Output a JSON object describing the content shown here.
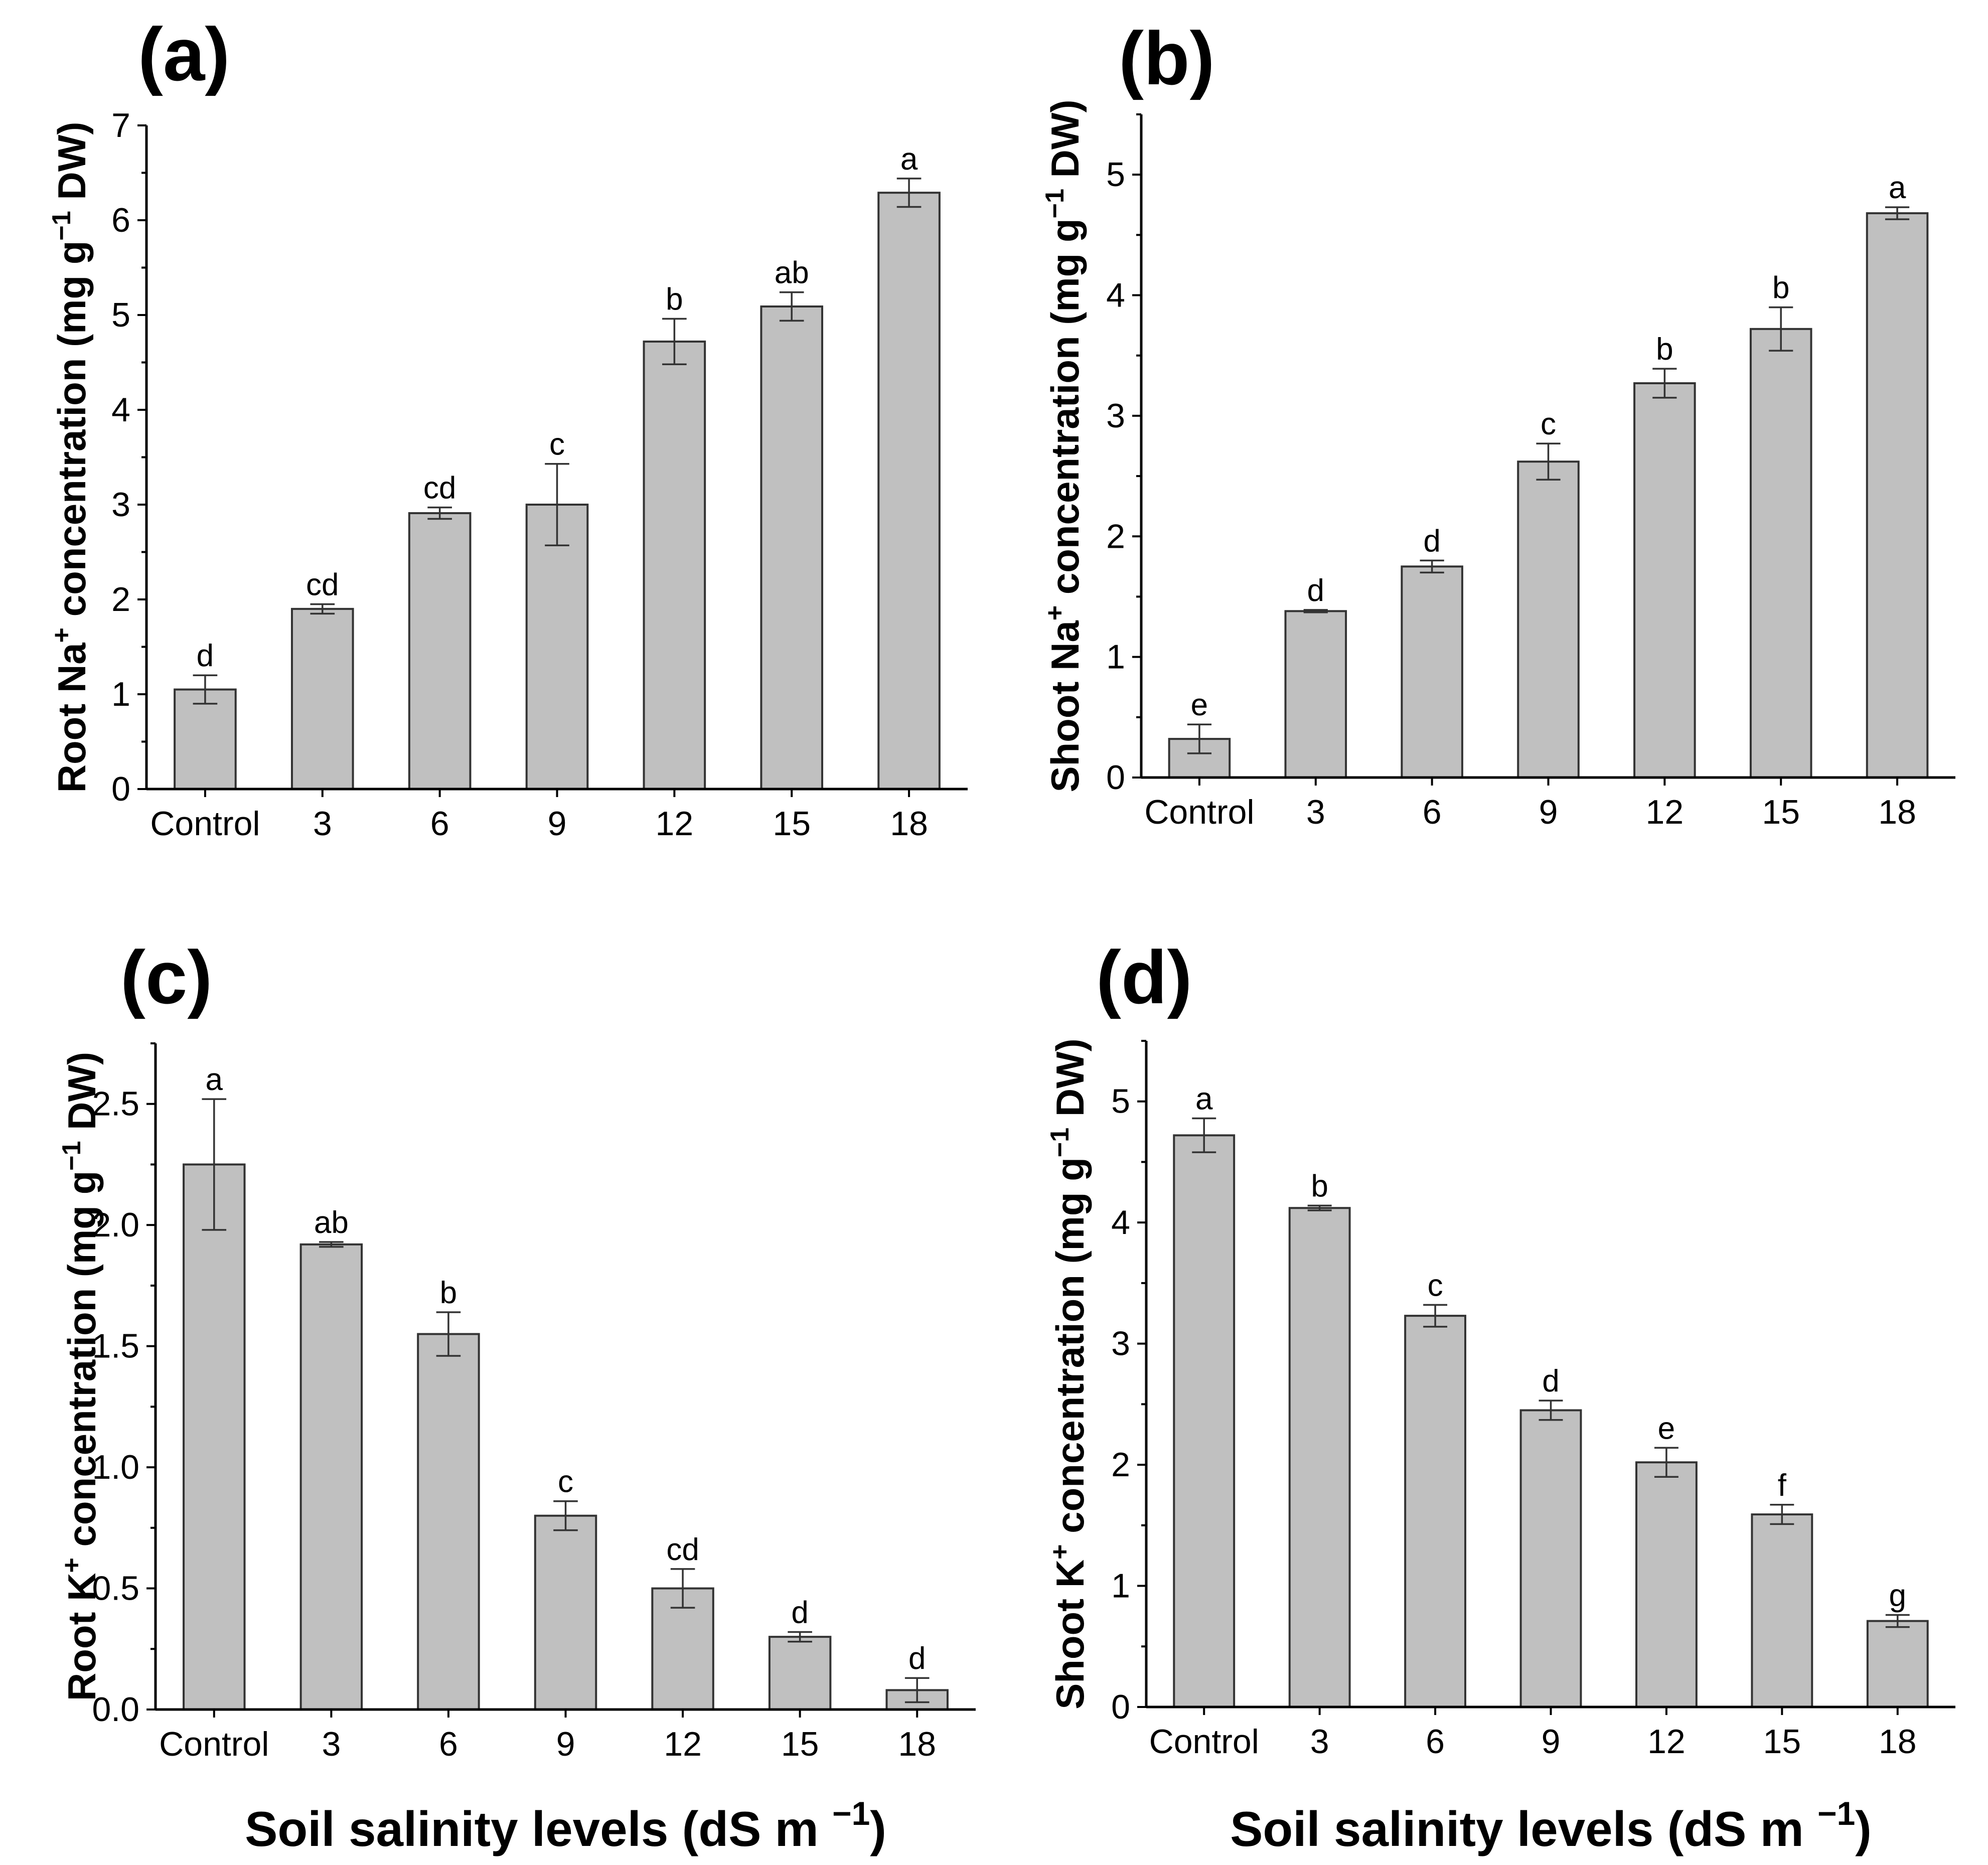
{
  "chart_data": [
    {
      "panel": "(a)",
      "type": "bar",
      "categories": [
        "Control",
        "3",
        "6",
        "9",
        "12",
        "15",
        "18"
      ],
      "values": [
        1.05,
        1.9,
        2.91,
        3.0,
        4.72,
        5.09,
        6.29
      ],
      "errors": [
        0.15,
        0.05,
        0.06,
        0.43,
        0.24,
        0.15,
        0.15
      ],
      "significance": [
        "d",
        "cd",
        "cd",
        "c",
        "b",
        "ab",
        "a"
      ],
      "ylabel": {
        "pre": "Root Na",
        "sup1": "+",
        "mid": " concentration (mg g",
        "sup2": "−1",
        "post": " DW)"
      },
      "xlabel": "",
      "ylim": [
        0,
        7
      ],
      "yticks": [
        "0",
        "1",
        "2",
        "3",
        "4",
        "5",
        "6",
        "7"
      ],
      "ytick_values": [
        0,
        1,
        2,
        3,
        4,
        5,
        6,
        7
      ],
      "bar_color": "#c0c0c0"
    },
    {
      "panel": "(b)",
      "type": "bar",
      "categories": [
        "Control",
        "3",
        "6",
        "9",
        "12",
        "15",
        "18"
      ],
      "values": [
        0.32,
        1.38,
        1.75,
        2.62,
        3.27,
        3.72,
        4.68
      ],
      "errors": [
        0.12,
        0.01,
        0.05,
        0.15,
        0.12,
        0.18,
        0.05
      ],
      "significance": [
        "e",
        "d",
        "d",
        "c",
        "b",
        "b",
        "a"
      ],
      "ylabel": {
        "pre": "Shoot Na",
        "sup1": "+",
        "mid": " concentration (mg g",
        "sup2": "−1",
        "post": " DW)"
      },
      "xlabel": "",
      "ylim": [
        0,
        5.5
      ],
      "yticks": [
        "0",
        "1",
        "2",
        "3",
        "4",
        "5"
      ],
      "ytick_values": [
        0,
        1,
        2,
        3,
        4,
        5
      ],
      "bar_color": "#c0c0c0"
    },
    {
      "panel": "(c)",
      "type": "bar",
      "categories": [
        "Control",
        "3",
        "6",
        "9",
        "12",
        "15",
        "18"
      ],
      "values": [
        2.25,
        1.92,
        1.55,
        0.8,
        0.5,
        0.3,
        0.08
      ],
      "errors": [
        0.27,
        0.01,
        0.09,
        0.06,
        0.08,
        0.02,
        0.05
      ],
      "significance": [
        "a",
        "ab",
        "b",
        "c",
        "cd",
        "d",
        "d"
      ],
      "ylabel": {
        "pre": "Root K",
        "sup1": "+",
        "mid": " concentration (mg g",
        "sup2": "−1",
        "post": " DW)"
      },
      "xlabel": {
        "main": "Soil salinity levels (dS m ",
        "sup": "−1",
        "post": ")"
      },
      "ylim": [
        0,
        2.75
      ],
      "yticks": [
        "0.0",
        "0.5",
        "1.0",
        "1.5",
        "2.0",
        "2.5"
      ],
      "ytick_values": [
        0,
        0.5,
        1,
        1.5,
        2,
        2.5
      ],
      "bar_color": "#c0c0c0"
    },
    {
      "panel": "(d)",
      "type": "bar",
      "categories": [
        "Control",
        "3",
        "6",
        "9",
        "12",
        "15",
        "18"
      ],
      "values": [
        4.72,
        4.12,
        3.23,
        2.45,
        2.02,
        1.59,
        0.71
      ],
      "errors": [
        0.14,
        0.02,
        0.09,
        0.08,
        0.12,
        0.08,
        0.05
      ],
      "significance": [
        "a",
        "b",
        "c",
        "d",
        "e",
        "f",
        "g"
      ],
      "ylabel": {
        "pre": "Shoot K",
        "sup1": "+",
        "mid": " concentration (mg g",
        "sup2": "−1",
        "post": " DW)"
      },
      "xlabel": {
        "main": "Soil salinity levels (dS m ",
        "sup": "−1",
        "post": ")"
      },
      "ylim": [
        0,
        5.5
      ],
      "yticks": [
        "0",
        "1",
        "2",
        "3",
        "4",
        "5"
      ],
      "ytick_values": [
        0,
        1,
        2,
        3,
        4,
        5
      ],
      "bar_color": "#c0c0c0"
    }
  ]
}
